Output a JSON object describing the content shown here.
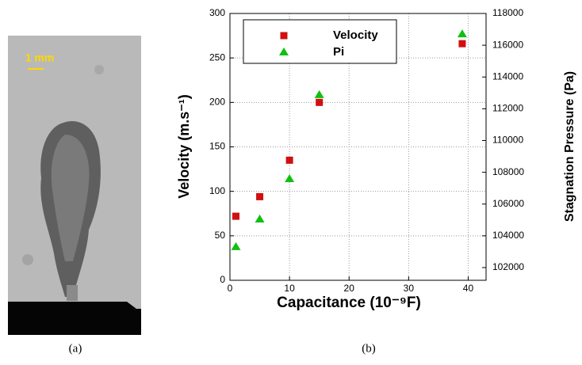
{
  "figure": {
    "scale_label": "1 mm",
    "caption_a": "(a)",
    "caption_b": "(b)"
  },
  "chart_data": {
    "type": "scatter",
    "x_label": "Capacitance (10⁻⁹F)",
    "y_label": "Velocity (m.s⁻¹)",
    "y2_label": "Stagnation Pressure (Pa)",
    "x": [
      1,
      5,
      10,
      15,
      39
    ],
    "series": [
      {
        "name": "Velocity",
        "color": "#d01010",
        "marker": "square",
        "values": [
          72,
          94,
          135,
          200,
          266
        ]
      },
      {
        "name": "Pi",
        "color": "#10c010",
        "marker": "triangle",
        "axis": "y2",
        "values": [
          103300,
          105040,
          107580,
          112870,
          116700
        ]
      }
    ],
    "xlim": [
      0,
      43
    ],
    "xticks": [
      0,
      10,
      20,
      30,
      40
    ],
    "ylim": [
      0,
      300
    ],
    "yticks": [
      0,
      50,
      100,
      150,
      200,
      250,
      300
    ],
    "y2lim": [
      101200,
      118000
    ],
    "y2ticks": [
      102000,
      104000,
      106000,
      108000,
      110000,
      112000,
      114000,
      116000,
      118000
    ],
    "grid": true,
    "legend": "upper-left"
  }
}
